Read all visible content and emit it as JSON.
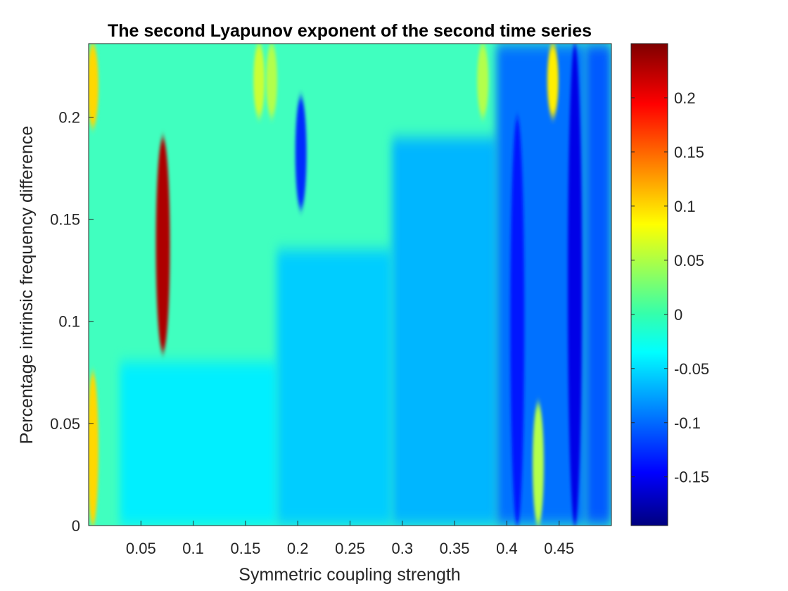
{
  "chart_data": {
    "type": "heatmap",
    "title": "The second Lyapunov exponent of the second time series",
    "xlabel": "Symmetric coupling strength",
    "ylabel": "Percentage intrinsic frequency difference",
    "xlim": [
      0.0,
      0.5
    ],
    "ylim": [
      0.0,
      0.236
    ],
    "x_ticks": [
      "0.05",
      "0.1",
      "0.15",
      "0.2",
      "0.25",
      "0.3",
      "0.35",
      "0.4",
      "0.45"
    ],
    "y_ticks": [
      "0",
      "0.05",
      "0.1",
      "0.15",
      "0.2"
    ],
    "colorbar": {
      "colormap": "jet",
      "range": [
        -0.195,
        0.25
      ],
      "ticks": [
        "0.2",
        "0.15",
        "0.1",
        "0.05",
        "0",
        "-0.05",
        "-0.1",
        "-0.15"
      ]
    },
    "background_value": 0.0,
    "region_values": [
      {
        "x": [
          0.03,
          0.18
        ],
        "y": [
          0.0,
          0.08
        ],
        "value": -0.035
      },
      {
        "x": [
          0.18,
          0.29
        ],
        "y": [
          0.0,
          0.135
        ],
        "value": -0.05
      },
      {
        "x": [
          0.29,
          0.39
        ],
        "y": [
          0.0,
          0.19
        ],
        "value": -0.06
      },
      {
        "x": [
          0.39,
          0.475
        ],
        "y": [
          0.0,
          0.236
        ],
        "value": -0.09
      },
      {
        "x": [
          0.475,
          0.5
        ],
        "y": [
          0.0,
          0.236
        ],
        "value": -0.1
      }
    ],
    "features": [
      {
        "x": 0.004,
        "y": [
          0.0,
          0.075
        ],
        "value": 0.1
      },
      {
        "x": 0.004,
        "y": [
          0.195,
          0.236
        ],
        "value": 0.1
      },
      {
        "x": 0.071,
        "y": [
          0.085,
          0.19
        ],
        "value": 0.23
      },
      {
        "x": 0.163,
        "y": [
          0.2,
          0.236
        ],
        "value": 0.06
      },
      {
        "x": 0.175,
        "y": [
          0.2,
          0.236
        ],
        "value": 0.05
      },
      {
        "x": 0.203,
        "y": [
          0.155,
          0.21
        ],
        "value": -0.12
      },
      {
        "x": 0.377,
        "y": [
          0.2,
          0.236
        ],
        "value": 0.05
      },
      {
        "x": 0.43,
        "y": [
          0.0,
          0.06
        ],
        "value": 0.05
      },
      {
        "x": 0.444,
        "y": [
          0.2,
          0.236
        ],
        "value": 0.09
      },
      {
        "x": 0.465,
        "y": [
          0.0,
          0.236
        ],
        "value": -0.15
      },
      {
        "x": 0.41,
        "y": [
          0.0,
          0.2
        ],
        "value": -0.13
      }
    ]
  }
}
